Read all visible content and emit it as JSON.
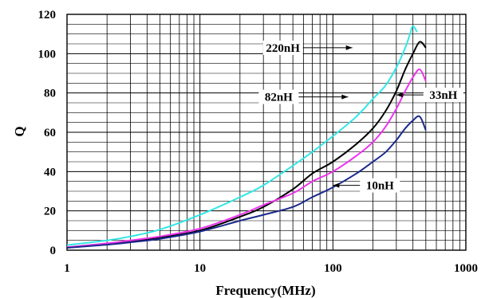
{
  "chart_data": {
    "type": "line",
    "title": "",
    "xlabel": "Frequency(MHz)",
    "ylabel": "Q",
    "x_scale": "log",
    "xlim": [
      1,
      1000
    ],
    "ylim": [
      0,
      120
    ],
    "x_ticks": [
      "1",
      "10",
      "100",
      "1000"
    ],
    "y_ticks": [
      "0",
      "20",
      "40",
      "60",
      "80",
      "100",
      "120"
    ],
    "grid": true,
    "legend": "none",
    "series": [
      {
        "name": "220nH",
        "color": "#33e6e6",
        "label_text": "220nH",
        "label_anchor": [
          140,
          103
        ],
        "label_side": "left",
        "points": [
          [
            1,
            2.6
          ],
          [
            2,
            5
          ],
          [
            3,
            7
          ],
          [
            5,
            10.5
          ],
          [
            10,
            18
          ],
          [
            20,
            27
          ],
          [
            30,
            33
          ],
          [
            50,
            43
          ],
          [
            70,
            50
          ],
          [
            100,
            58
          ],
          [
            150,
            68
          ],
          [
            200,
            77
          ],
          [
            250,
            84
          ],
          [
            300,
            93
          ],
          [
            350,
            103
          ],
          [
            380,
            110
          ],
          [
            400,
            114
          ],
          [
            430,
            111
          ]
        ]
      },
      {
        "name": "82nH",
        "color": "#000000",
        "label_text": "82nH",
        "label_anchor": [
          130,
          78
        ],
        "label_side": "left",
        "points": [
          [
            1,
            1.3
          ],
          [
            2,
            3
          ],
          [
            3,
            4.5
          ],
          [
            5,
            6.5
          ],
          [
            10,
            10
          ],
          [
            20,
            17
          ],
          [
            30,
            22
          ],
          [
            50,
            31
          ],
          [
            70,
            39
          ],
          [
            100,
            45
          ],
          [
            150,
            54
          ],
          [
            200,
            62
          ],
          [
            250,
            71
          ],
          [
            300,
            81
          ],
          [
            350,
            92
          ],
          [
            400,
            100
          ],
          [
            450,
            106
          ],
          [
            500,
            103
          ]
        ]
      },
      {
        "name": "33nH",
        "color": "#ee33ee",
        "label_text": "33nH",
        "label_anchor": [
          300,
          79
        ],
        "label_side": "right",
        "points": [
          [
            1,
            1.5
          ],
          [
            2,
            3.5
          ],
          [
            3,
            5
          ],
          [
            5,
            7
          ],
          [
            10,
            11
          ],
          [
            20,
            18
          ],
          [
            30,
            23
          ],
          [
            50,
            29
          ],
          [
            70,
            35
          ],
          [
            100,
            40
          ],
          [
            150,
            48
          ],
          [
            200,
            55
          ],
          [
            250,
            63
          ],
          [
            300,
            72
          ],
          [
            350,
            81
          ],
          [
            400,
            88
          ],
          [
            450,
            92
          ],
          [
            500,
            86
          ]
        ]
      },
      {
        "name": "10nH",
        "color": "#1a2a8c",
        "label_text": "10nH",
        "label_anchor": [
          100,
          33
        ],
        "label_side": "right",
        "points": [
          [
            1,
            1.2
          ],
          [
            2,
            2.8
          ],
          [
            3,
            4
          ],
          [
            5,
            5.8
          ],
          [
            10,
            9.5
          ],
          [
            20,
            15
          ],
          [
            30,
            18
          ],
          [
            50,
            22
          ],
          [
            70,
            27
          ],
          [
            100,
            32
          ],
          [
            150,
            39
          ],
          [
            200,
            45
          ],
          [
            250,
            50
          ],
          [
            300,
            56
          ],
          [
            350,
            62
          ],
          [
            400,
            66
          ],
          [
            450,
            68
          ],
          [
            500,
            61
          ]
        ]
      }
    ]
  }
}
